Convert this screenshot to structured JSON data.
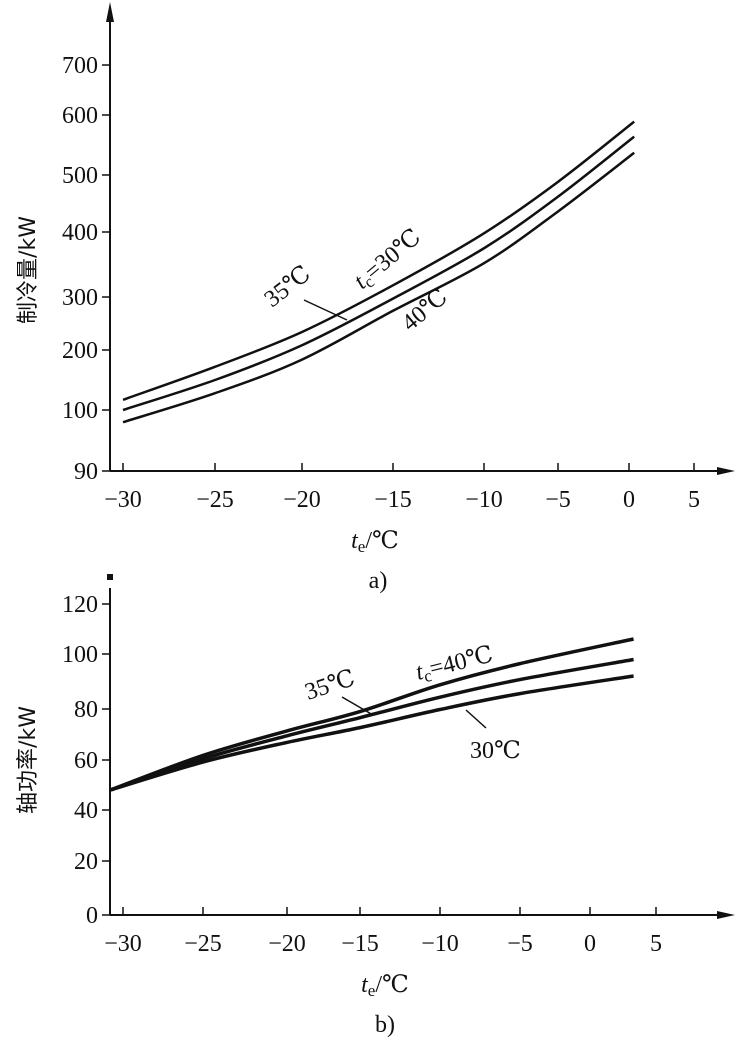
{
  "chart_data": [
    {
      "type": "line",
      "panel_label": "a)",
      "ylabel": "制冷量/kW",
      "xlabel": {
        "italic": "t",
        "sub": "e",
        "rest": "/℃"
      },
      "x_ticks": [
        "−30",
        "−25",
        "−20",
        "−15",
        "−10",
        "−5",
        "0",
        "5"
      ],
      "x_tick_values": [
        -30,
        -25,
        -20,
        -15,
        -10,
        -5,
        0,
        5
      ],
      "y_ticks": [
        "90",
        "100",
        "200",
        "300",
        "400",
        "500",
        "600",
        "700"
      ],
      "y_tick_values": [
        90,
        100,
        200,
        300,
        400,
        500,
        600,
        700
      ],
      "x": [
        -30,
        -25,
        -20,
        -15,
        -10,
        -5,
        0.4
      ],
      "series": [
        {
          "name": "30℃",
          "values": [
            117,
            172,
            234,
            318,
            398,
            488,
            589
          ]
        },
        {
          "name": "35℃",
          "values": [
            100,
            150,
            209,
            297,
            375,
            462,
            564
          ]
        },
        {
          "name": "40℃",
          "values": [
            98,
            128,
            184,
            274,
            352,
            436,
            537
          ]
        }
      ],
      "annotations": {
        "a1": {
          "text": "35℃"
        },
        "a2": {
          "italic": "t",
          "sub": "c",
          "rest": "=30℃"
        },
        "a3": {
          "text": "40℃"
        }
      }
    },
    {
      "type": "line",
      "panel_label": "b)",
      "ylabel": "轴功率/kW",
      "xlabel": {
        "italic": "t",
        "sub": "e",
        "rest": "/℃"
      },
      "x_ticks": [
        "−30",
        "−25",
        "−20",
        "−15",
        "−10",
        "−5",
        "0",
        "5"
      ],
      "x_tick_values": [
        -30,
        -25,
        -20,
        -15,
        -10,
        -5,
        0,
        5
      ],
      "y_ticks": [
        "0",
        "20",
        "40",
        "60",
        "80",
        "100",
        "120"
      ],
      "y_tick_values": [
        0,
        20,
        40,
        60,
        80,
        100,
        120
      ],
      "x": [
        -30.8,
        -25,
        -20,
        -15,
        -10,
        -5,
        3.3
      ],
      "series": [
        {
          "name": "40℃",
          "values": [
            48,
            61.8,
            71.4,
            79,
            88.8,
            96.5,
            106
          ]
        },
        {
          "name": "35℃",
          "values": [
            48,
            60.5,
            69.5,
            76.6,
            84.3,
            90.7,
            98
          ]
        },
        {
          "name": "30℃",
          "values": [
            48,
            59.2,
            66.9,
            72.7,
            79.8,
            85.6,
            92
          ]
        }
      ],
      "annotations": {
        "a1": {
          "text": "35℃"
        },
        "a2": {
          "italic": "t",
          "sub": "c",
          "rest": "=40℃"
        },
        "a3": {
          "text": "30℃"
        }
      }
    }
  ]
}
